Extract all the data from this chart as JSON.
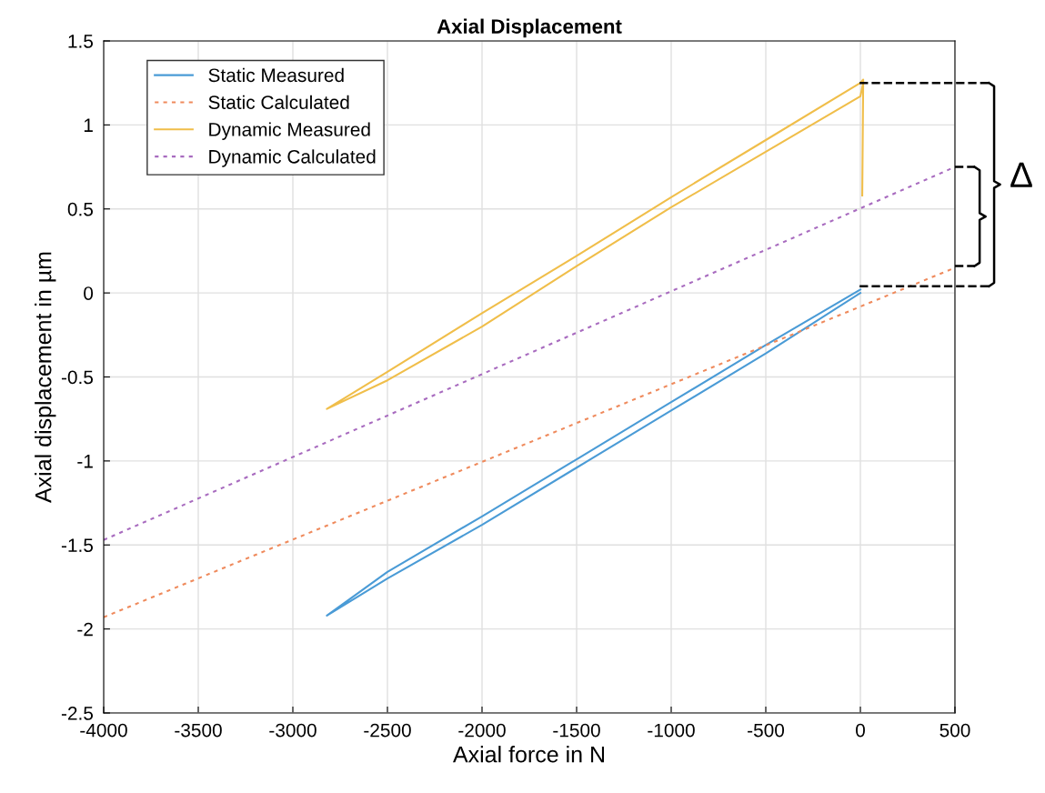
{
  "chart_data": {
    "type": "line",
    "title": "Axial Displacement",
    "xlabel": "Axial force in N",
    "ylabel": "Axial displacement in µm",
    "xlim": [
      -4000,
      500
    ],
    "xticks": [
      -4000,
      -3500,
      -3000,
      -2500,
      -2000,
      -1500,
      -1000,
      -500,
      0,
      500
    ],
    "ylim": [
      -2.5,
      1.5
    ],
    "yticks": [
      -2.5,
      -2,
      -1.5,
      -1,
      -0.5,
      0,
      0.5,
      1,
      1.5
    ],
    "grid": true,
    "legend": "top left",
    "series": [
      {
        "name": "Static Measured",
        "color": "#4a9bd6",
        "line_style": "solid",
        "x": [
          0,
          -500,
          -1000,
          -1500,
          -2000,
          -2500,
          -2820,
          -2500,
          -2000,
          -1500,
          -1000,
          -500,
          0
        ],
        "values": [
          0.0,
          -0.36,
          -0.7,
          -1.04,
          -1.38,
          -1.7,
          -1.92,
          -1.66,
          -1.33,
          -0.99,
          -0.65,
          -0.31,
          0.02
        ]
      },
      {
        "name": "Static Calculated",
        "color": "#ef8a5c",
        "line_style": "dotted",
        "x": [
          -4000,
          500
        ],
        "values": [
          -1.93,
          0.15
        ]
      },
      {
        "name": "Dynamic Measured",
        "color": "#f0be4a",
        "line_style": "solid",
        "x": [
          10,
          15,
          0,
          -500,
          -1000,
          -1500,
          -2000,
          -2500,
          -2820,
          -2500,
          -2000,
          -1500,
          -1000,
          -500,
          0,
          15
        ],
        "values": [
          0.58,
          1.27,
          1.25,
          0.91,
          0.57,
          0.22,
          -0.12,
          -0.47,
          -0.69,
          -0.52,
          -0.2,
          0.16,
          0.51,
          0.84,
          1.17,
          1.25
        ]
      },
      {
        "name": "Dynamic Calculated",
        "color": "#a86bbf",
        "line_style": "dotted",
        "x": [
          -4000,
          500
        ],
        "values": [
          -1.47,
          0.75
        ]
      }
    ],
    "annotations": [
      "Δ"
    ]
  }
}
